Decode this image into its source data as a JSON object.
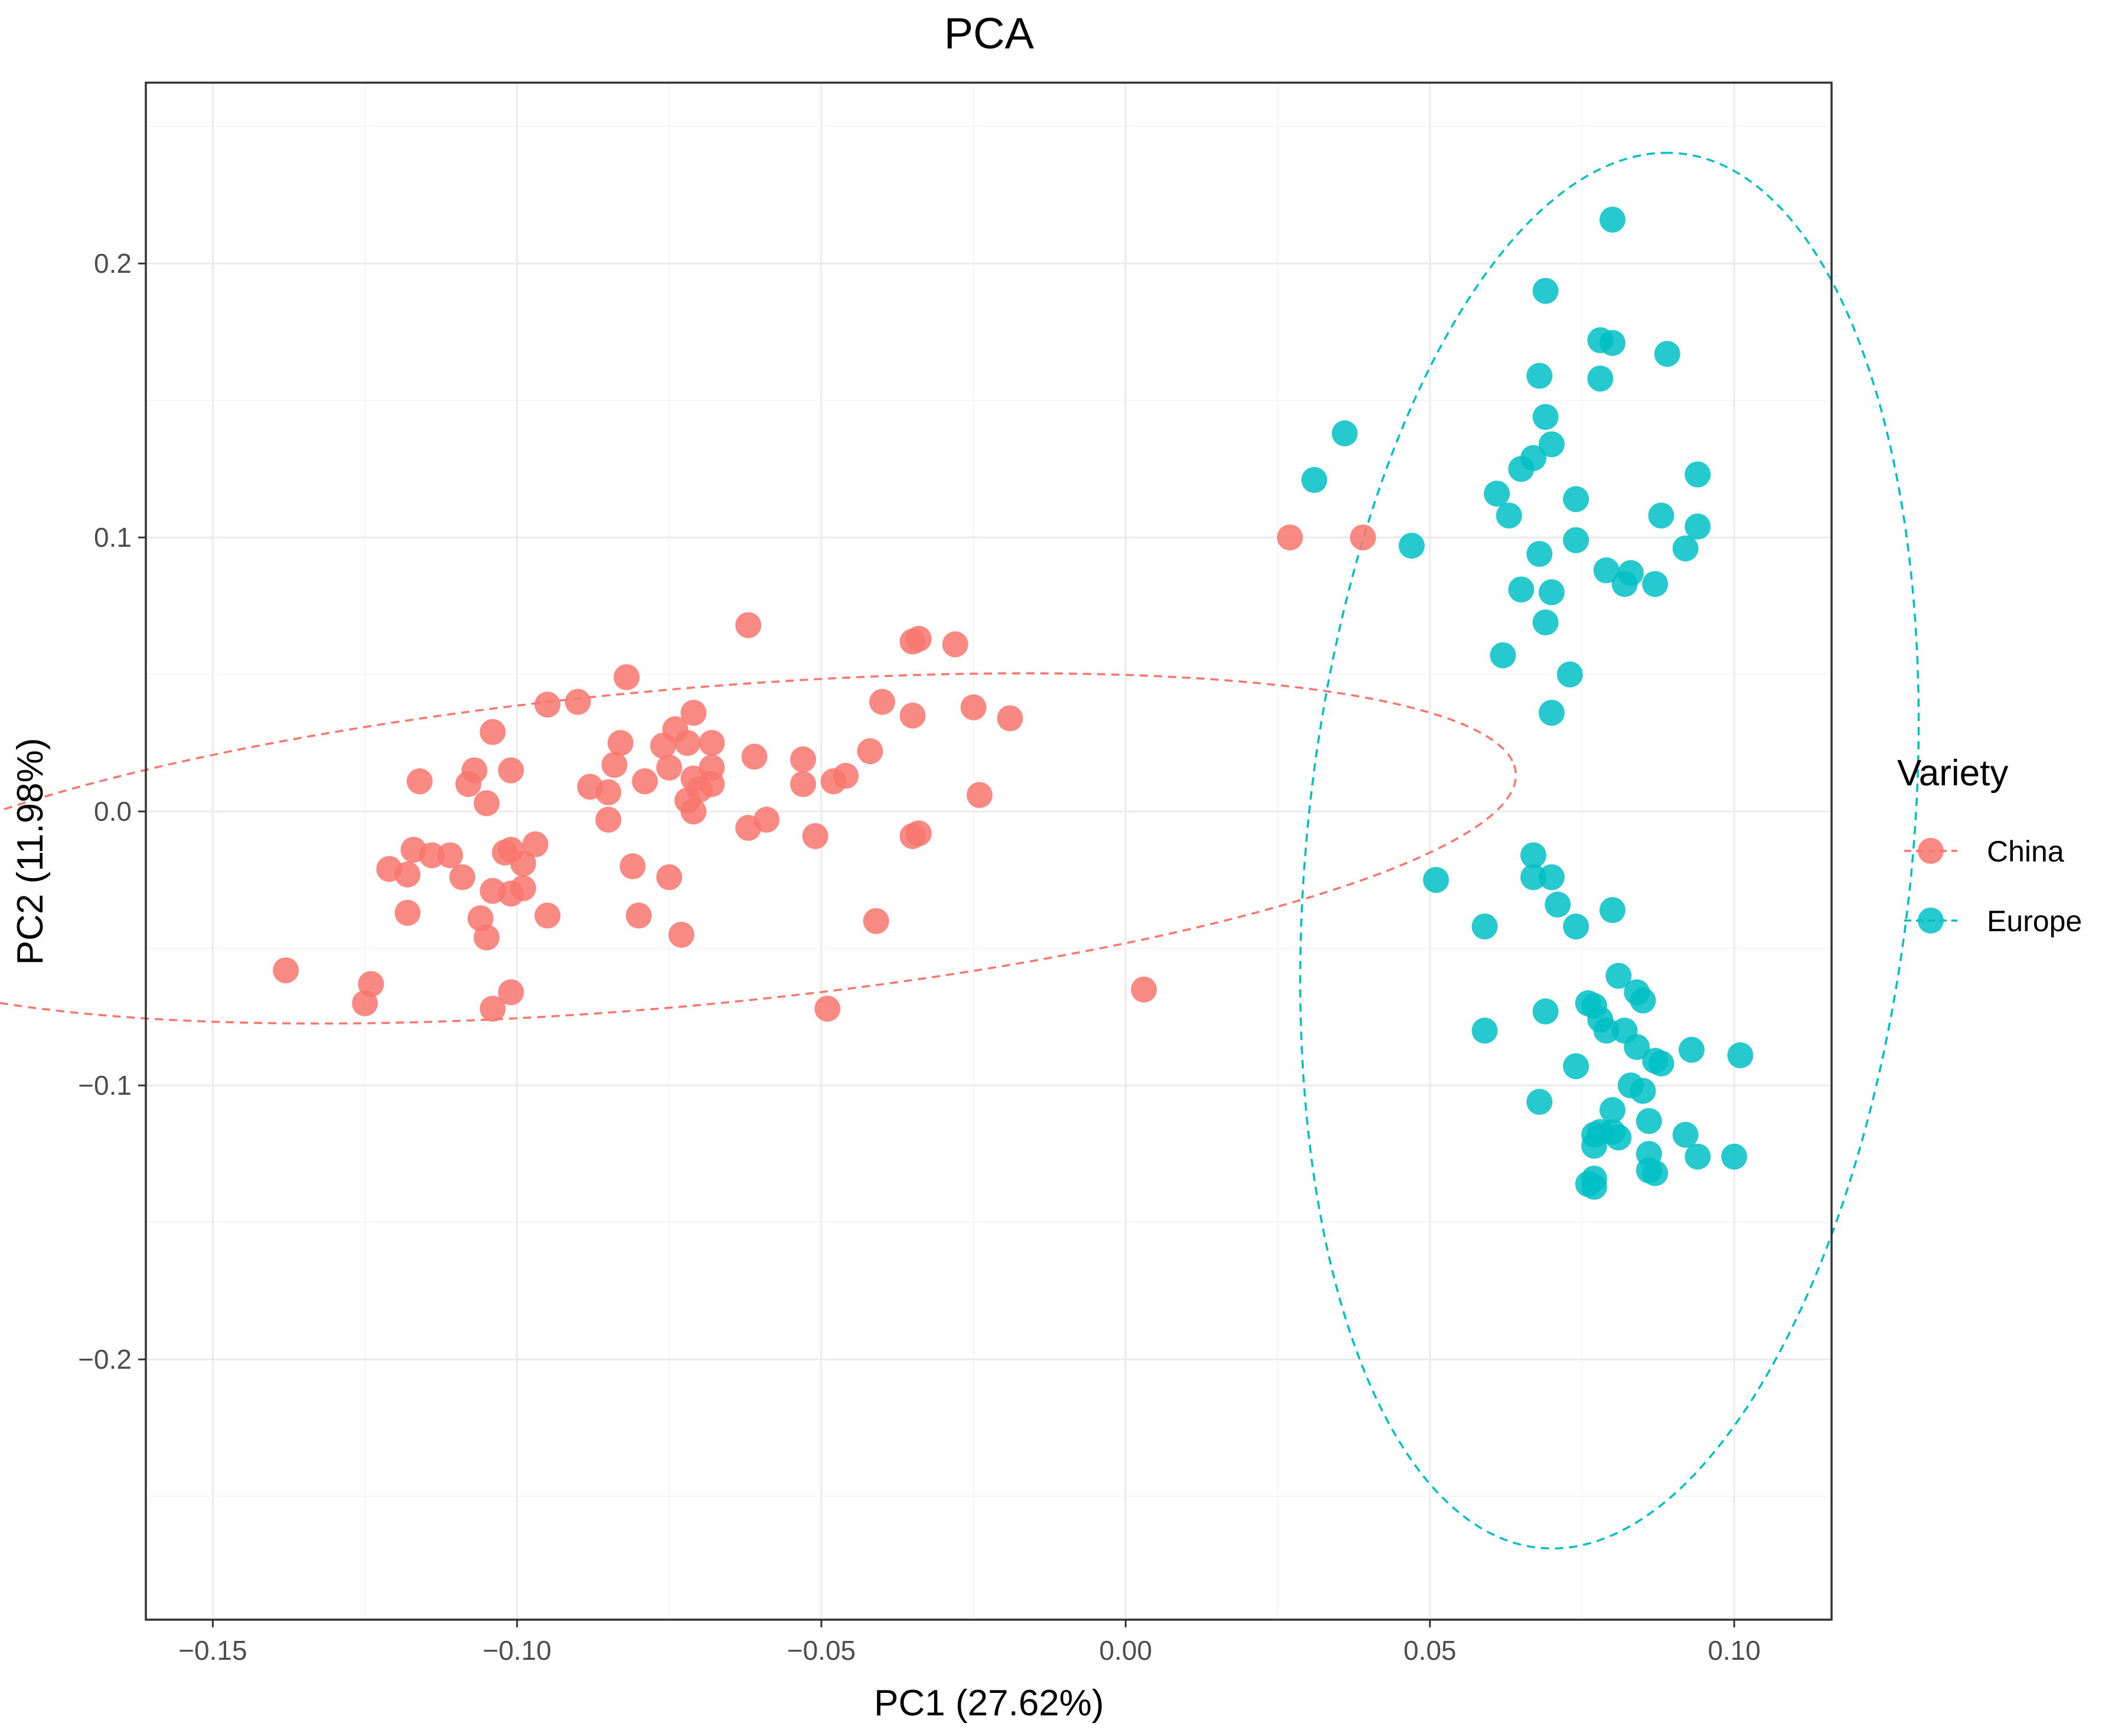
{
  "chart_data": {
    "type": "scatter",
    "title": "PCA",
    "xlabel": "PC1 (27.62%)",
    "ylabel": "PC2 (11.98%)",
    "xlim": [
      -0.161,
      0.116
    ],
    "ylim": [
      -0.295,
      0.266
    ],
    "x_ticks": [
      -0.15,
      -0.1,
      -0.05,
      0.0,
      0.05,
      0.1
    ],
    "x_tick_labels": [
      "−0.15",
      "−0.10",
      "−0.05",
      "0.00",
      "0.05",
      "0.10"
    ],
    "y_ticks": [
      0.2,
      0.1,
      0.0,
      -0.1,
      -0.2
    ],
    "y_tick_labels": [
      "0.2",
      "0.1",
      "0.0",
      "−0.1",
      "−0.2"
    ],
    "grid": true,
    "legend": {
      "title": "Variety",
      "position": "right",
      "entries": [
        "China",
        "Europe"
      ]
    },
    "series": [
      {
        "name": "China",
        "color": "#F8766D",
        "ellipse": {
          "center": [
            -0.0745,
            -0.0135
          ],
          "radii": [
            0.1417,
            0.0568
          ],
          "angle_deg": 13.05
        },
        "points": [
          [
            -0.062,
            0.068
          ],
          [
            -0.034,
            0.063
          ],
          [
            -0.035,
            0.062
          ],
          [
            -0.028,
            0.061
          ],
          [
            -0.082,
            0.049
          ],
          [
            -0.09,
            0.04
          ],
          [
            -0.095,
            0.039
          ],
          [
            -0.04,
            0.04
          ],
          [
            -0.025,
            0.038
          ],
          [
            -0.071,
            0.036
          ],
          [
            -0.035,
            0.035
          ],
          [
            -0.019,
            0.034
          ],
          [
            -0.104,
            0.029
          ],
          [
            -0.074,
            0.03
          ],
          [
            -0.083,
            0.025
          ],
          [
            -0.076,
            0.024
          ],
          [
            -0.072,
            0.025
          ],
          [
            -0.068,
            0.025
          ],
          [
            -0.042,
            0.022
          ],
          [
            -0.061,
            0.02
          ],
          [
            -0.053,
            0.019
          ],
          [
            -0.084,
            0.017
          ],
          [
            -0.075,
            0.016
          ],
          [
            -0.068,
            0.016
          ],
          [
            -0.107,
            0.015
          ],
          [
            -0.101,
            0.015
          ],
          [
            -0.071,
            0.012
          ],
          [
            -0.046,
            0.013
          ],
          [
            -0.048,
            0.011
          ],
          [
            -0.116,
            0.011
          ],
          [
            -0.108,
            0.01
          ],
          [
            -0.079,
            0.011
          ],
          [
            -0.053,
            0.01
          ],
          [
            -0.068,
            0.01
          ],
          [
            -0.088,
            0.009
          ],
          [
            -0.07,
            0.008
          ],
          [
            -0.085,
            0.007
          ],
          [
            -0.072,
            0.004
          ],
          [
            -0.024,
            0.006
          ],
          [
            -0.105,
            0.003
          ],
          [
            -0.071,
            0.0
          ],
          [
            -0.085,
            -0.003
          ],
          [
            -0.059,
            -0.003
          ],
          [
            -0.062,
            -0.006
          ],
          [
            -0.051,
            -0.009
          ],
          [
            -0.035,
            -0.009
          ],
          [
            -0.034,
            -0.008
          ],
          [
            -0.097,
            -0.012
          ],
          [
            -0.101,
            -0.014
          ],
          [
            -0.102,
            -0.015
          ],
          [
            -0.117,
            -0.014
          ],
          [
            -0.114,
            -0.016
          ],
          [
            -0.111,
            -0.016
          ],
          [
            -0.099,
            -0.019
          ],
          [
            -0.081,
            -0.02
          ],
          [
            -0.121,
            -0.021
          ],
          [
            -0.118,
            -0.023
          ],
          [
            -0.109,
            -0.024
          ],
          [
            -0.075,
            -0.024
          ],
          [
            -0.099,
            -0.028
          ],
          [
            -0.104,
            -0.029
          ],
          [
            -0.101,
            -0.03
          ],
          [
            -0.118,
            -0.037
          ],
          [
            -0.095,
            -0.038
          ],
          [
            -0.08,
            -0.038
          ],
          [
            -0.106,
            -0.039
          ],
          [
            -0.041,
            -0.04
          ],
          [
            -0.105,
            -0.046
          ],
          [
            -0.073,
            -0.045
          ],
          [
            -0.138,
            -0.058
          ],
          [
            -0.124,
            -0.063
          ],
          [
            -0.125,
            -0.07
          ],
          [
            -0.101,
            -0.066
          ],
          [
            -0.104,
            -0.072
          ],
          [
            -0.049,
            -0.072
          ],
          [
            0.003,
            -0.065
          ],
          [
            0.027,
            0.1
          ],
          [
            0.039,
            0.1
          ]
        ]
      },
      {
        "name": "Europe",
        "color": "#00BFC4",
        "ellipse": {
          "center": [
            0.0795,
            -0.0143
          ],
          "radii": [
            0.2549,
            0.0499
          ],
          "angle_deg": 87.8
        },
        "points": [
          [
            0.08,
            0.216
          ],
          [
            0.069,
            0.19
          ],
          [
            0.078,
            0.172
          ],
          [
            0.08,
            0.171
          ],
          [
            0.089,
            0.167
          ],
          [
            0.068,
            0.159
          ],
          [
            0.078,
            0.158
          ],
          [
            0.069,
            0.144
          ],
          [
            0.036,
            0.138
          ],
          [
            0.07,
            0.134
          ],
          [
            0.067,
            0.129
          ],
          [
            0.065,
            0.125
          ],
          [
            0.094,
            0.123
          ],
          [
            0.031,
            0.121
          ],
          [
            0.061,
            0.116
          ],
          [
            0.074,
            0.114
          ],
          [
            0.063,
            0.108
          ],
          [
            0.088,
            0.108
          ],
          [
            0.094,
            0.104
          ],
          [
            0.074,
            0.099
          ],
          [
            0.047,
            0.097
          ],
          [
            0.092,
            0.096
          ],
          [
            0.068,
            0.094
          ],
          [
            0.079,
            0.088
          ],
          [
            0.083,
            0.087
          ],
          [
            0.082,
            0.083
          ],
          [
            0.087,
            0.083
          ],
          [
            0.065,
            0.081
          ],
          [
            0.07,
            0.08
          ],
          [
            0.069,
            0.069
          ],
          [
            0.062,
            0.057
          ],
          [
            0.073,
            0.05
          ],
          [
            0.07,
            0.036
          ],
          [
            0.067,
            -0.016
          ],
          [
            0.067,
            -0.024
          ],
          [
            0.07,
            -0.024
          ],
          [
            0.051,
            -0.025
          ],
          [
            0.071,
            -0.034
          ],
          [
            0.08,
            -0.036
          ],
          [
            0.059,
            -0.042
          ],
          [
            0.074,
            -0.042
          ],
          [
            0.081,
            -0.06
          ],
          [
            0.084,
            -0.066
          ],
          [
            0.085,
            -0.069
          ],
          [
            0.076,
            -0.07
          ],
          [
            0.077,
            -0.071
          ],
          [
            0.069,
            -0.073
          ],
          [
            0.078,
            -0.076
          ],
          [
            0.059,
            -0.08
          ],
          [
            0.079,
            -0.08
          ],
          [
            0.082,
            -0.08
          ],
          [
            0.084,
            -0.086
          ],
          [
            0.093,
            -0.087
          ],
          [
            0.087,
            -0.091
          ],
          [
            0.088,
            -0.092
          ],
          [
            0.074,
            -0.093
          ],
          [
            0.083,
            -0.1
          ],
          [
            0.085,
            -0.102
          ],
          [
            0.068,
            -0.106
          ],
          [
            0.08,
            -0.109
          ],
          [
            0.086,
            -0.113
          ],
          [
            0.078,
            -0.117
          ],
          [
            0.08,
            -0.117
          ],
          [
            0.077,
            -0.118
          ],
          [
            0.081,
            -0.119
          ],
          [
            0.092,
            -0.118
          ],
          [
            0.077,
            -0.122
          ],
          [
            0.086,
            -0.125
          ],
          [
            0.094,
            -0.126
          ],
          [
            0.1,
            -0.126
          ],
          [
            0.086,
            -0.131
          ],
          [
            0.087,
            -0.132
          ],
          [
            0.077,
            -0.134
          ],
          [
            0.076,
            -0.136
          ],
          [
            0.077,
            -0.137
          ],
          [
            0.101,
            -0.089
          ]
        ]
      }
    ]
  }
}
